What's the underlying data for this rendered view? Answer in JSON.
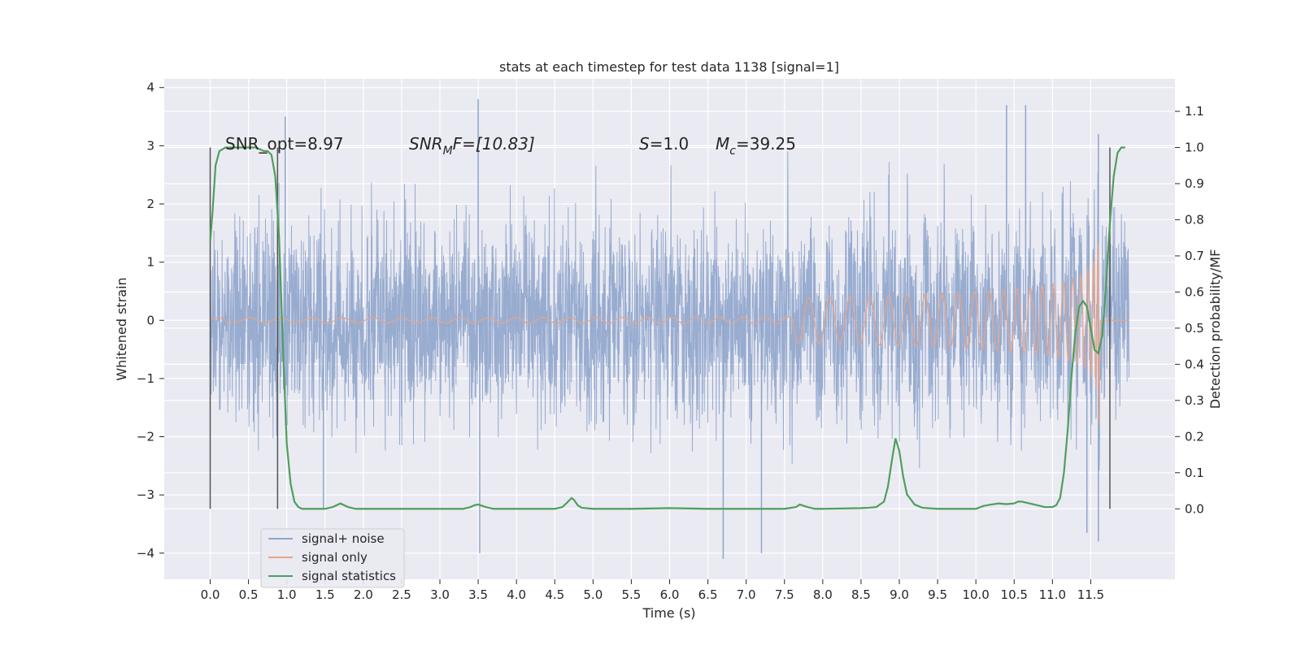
{
  "chart_data": {
    "type": "line",
    "title": "stats at each timestep for test data 1138 [signal=1]",
    "xlabel": "Time (s)",
    "ylabel": "Whitened strain",
    "y2label": "Detection probability/MF",
    "xlim": [
      -0.6,
      12.6
    ],
    "ylim": [
      -4.45,
      4.15
    ],
    "y2lim": [
      -0.195,
      1.19
    ],
    "x_ticks": [
      "0.0",
      "0.5",
      "1.0",
      "1.5",
      "2.0",
      "2.5",
      "3.0",
      "3.5",
      "4.0",
      "4.5",
      "5.0",
      "5.5",
      "6.0",
      "6.5",
      "7.0",
      "7.5",
      "8.0",
      "8.5",
      "9.0",
      "9.5",
      "10.0",
      "10.5",
      "11.0",
      "11.5"
    ],
    "y_ticks": [
      "4",
      "3",
      "2",
      "1",
      "0",
      "−1",
      "−2",
      "−3",
      "−4"
    ],
    "y_tick_values": [
      4,
      3,
      2,
      1,
      0,
      -1,
      -2,
      -3,
      -4
    ],
    "y2_ticks": [
      "1.1",
      "1.0",
      "0.9",
      "0.8",
      "0.7",
      "0.6",
      "0.5",
      "0.4",
      "0.3",
      "0.2",
      "0.1",
      "0.0"
    ],
    "y2_tick_values": [
      1.1,
      1.0,
      0.9,
      0.8,
      0.7,
      0.6,
      0.5,
      0.4,
      0.3,
      0.2,
      0.1,
      0.0
    ],
    "grid": true,
    "legend_position": "lower-left",
    "annotations": {
      "snr_opt": "SNR_opt=8.97",
      "snr_mf": "SNR",
      "snr_mf_sub": "M",
      "snr_mf_rest": "F=[10.83]",
      "s_label": "S",
      "s_value": "=1.0",
      "mc_label": "M",
      "mc_sub": "c",
      "mc_value": "=39.25"
    },
    "vertical_lines_x": [
      0.0,
      0.88,
      11.75
    ],
    "series": [
      {
        "name": "signal+ noise",
        "color": "#8fa5cc",
        "style": "dense noise band",
        "x_range": [
          0.0,
          12.0
        ],
        "typical_band": [
          -2.2,
          2.2
        ],
        "spikes": [
          {
            "x": 0.98,
            "y": 3.5
          },
          {
            "x": 1.48,
            "y": -3.25
          },
          {
            "x": 3.5,
            "y": 3.8
          },
          {
            "x": 3.52,
            "y": -4.0
          },
          {
            "x": 6.7,
            "y": -4.1
          },
          {
            "x": 7.2,
            "y": -4.0
          },
          {
            "x": 10.4,
            "y": 3.7
          },
          {
            "x": 10.65,
            "y": 3.7
          },
          {
            "x": 11.45,
            "y": -3.65
          },
          {
            "x": 11.6,
            "y": -3.8
          },
          {
            "x": 11.6,
            "y": 3.2
          }
        ]
      },
      {
        "name": "signal only",
        "color": "#e8a48a",
        "style": "chirp",
        "x_range": [
          0.0,
          12.0
        ],
        "chirp_peak_x": 11.62,
        "chirp_peak_amplitude": 2.2
      },
      {
        "name": "signal statistics",
        "color": "#4e9f5b",
        "axis": "right",
        "x": [
          0.0,
          0.03,
          0.07,
          0.12,
          0.2,
          0.3,
          0.45,
          0.6,
          0.7,
          0.75,
          0.8,
          0.85,
          0.9,
          0.95,
          1.0,
          1.05,
          1.1,
          1.15,
          1.2,
          1.3,
          1.5,
          1.6,
          1.65,
          1.7,
          1.8,
          1.9,
          2.0,
          2.5,
          3.0,
          3.3,
          3.4,
          3.45,
          3.5,
          3.6,
          3.7,
          4.0,
          4.5,
          4.6,
          4.65,
          4.72,
          4.75,
          4.8,
          4.85,
          5.0,
          5.5,
          6.0,
          6.5,
          7.0,
          7.5,
          7.65,
          7.7,
          7.8,
          7.9,
          8.0,
          8.5,
          8.6,
          8.7,
          8.8,
          8.85,
          8.9,
          8.95,
          9.0,
          9.05,
          9.1,
          9.2,
          9.3,
          9.5,
          10.0,
          10.1,
          10.2,
          10.3,
          10.4,
          10.5,
          10.55,
          10.6,
          10.7,
          10.8,
          10.9,
          11.0,
          11.05,
          11.1,
          11.15,
          11.2,
          11.25,
          11.3,
          11.35,
          11.4,
          11.45,
          11.5,
          11.55,
          11.6,
          11.65,
          11.7,
          11.75,
          11.8,
          11.85,
          11.9,
          11.95
        ],
        "values": [
          0.74,
          0.82,
          0.95,
          0.99,
          1.0,
          1.0,
          1.0,
          1.0,
          0.99,
          0.99,
          0.98,
          0.92,
          0.75,
          0.45,
          0.18,
          0.07,
          0.02,
          0.005,
          0.0,
          0.0,
          0.0,
          0.005,
          0.01,
          0.015,
          0.005,
          0.0,
          0.0,
          0.0,
          0.0,
          0.0,
          0.005,
          0.01,
          0.012,
          0.005,
          0.0,
          0.0,
          0.0,
          0.005,
          0.015,
          0.03,
          0.025,
          0.01,
          0.003,
          0.0,
          0.0,
          0.002,
          0.0,
          0.0,
          0.0,
          0.005,
          0.012,
          0.005,
          0.0,
          0.0,
          0.002,
          0.003,
          0.005,
          0.02,
          0.06,
          0.13,
          0.195,
          0.16,
          0.09,
          0.04,
          0.012,
          0.003,
          0.0,
          0.0,
          0.008,
          0.012,
          0.015,
          0.013,
          0.015,
          0.02,
          0.02,
          0.015,
          0.01,
          0.005,
          0.005,
          0.01,
          0.03,
          0.1,
          0.22,
          0.37,
          0.49,
          0.56,
          0.575,
          0.56,
          0.5,
          0.44,
          0.43,
          0.48,
          0.62,
          0.79,
          0.92,
          0.985,
          1.0,
          1.0
        ]
      }
    ]
  }
}
